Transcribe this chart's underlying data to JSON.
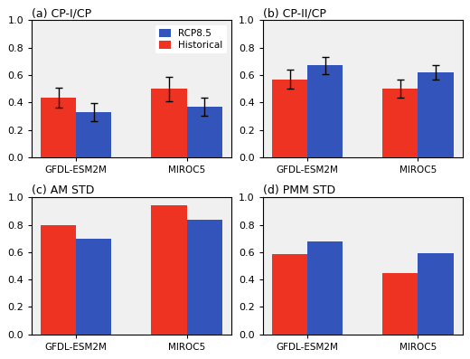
{
  "subplots": [
    {
      "title": "(a) CP-I/CP",
      "groups": [
        "GFDL-ESM2M",
        "MIROC5"
      ],
      "red_values": [
        0.435,
        0.5
      ],
      "blue_values": [
        0.33,
        0.37
      ],
      "red_errors": [
        0.075,
        0.09
      ],
      "blue_errors": [
        0.065,
        0.065
      ],
      "has_legend": true,
      "ylim": [
        0.0,
        1.0
      ],
      "yticks": [
        0.0,
        0.2,
        0.4,
        0.6,
        0.8,
        1.0
      ]
    },
    {
      "title": "(b) CP-II/CP",
      "groups": [
        "GFDL-ESM2M",
        "MIROC5"
      ],
      "red_values": [
        0.57,
        0.5
      ],
      "blue_values": [
        0.67,
        0.62
      ],
      "red_errors": [
        0.07,
        0.065
      ],
      "blue_errors": [
        0.065,
        0.055
      ],
      "has_legend": false,
      "ylim": [
        0.0,
        1.0
      ],
      "yticks": [
        0.0,
        0.2,
        0.4,
        0.6,
        0.8,
        1.0
      ]
    },
    {
      "title": "(c) AM STD",
      "groups": [
        "GFDL-ESM2M",
        "MIROC5"
      ],
      "red_values": [
        0.8,
        0.945
      ],
      "blue_values": [
        0.695,
        0.835
      ],
      "red_errors": [
        0,
        0
      ],
      "blue_errors": [
        0,
        0
      ],
      "has_legend": false,
      "ylim": [
        0.0,
        1.0
      ],
      "yticks": [
        0.0,
        0.2,
        0.4,
        0.6,
        0.8,
        1.0
      ]
    },
    {
      "title": "(d) PMM STD",
      "groups": [
        "GFDL-ESM2M",
        "MIROC5"
      ],
      "red_values": [
        0.585,
        0.45
      ],
      "blue_values": [
        0.675,
        0.59
      ],
      "red_errors": [
        0,
        0
      ],
      "blue_errors": [
        0,
        0
      ],
      "has_legend": false,
      "ylim": [
        0.0,
        1.0
      ],
      "yticks": [
        0.0,
        0.2,
        0.4,
        0.6,
        0.8,
        1.0
      ]
    }
  ],
  "red_color": "#ee3322",
  "blue_color": "#3355bb",
  "legend_labels": [
    "RCP8.5",
    "Historical"
  ],
  "bar_width": 0.32,
  "background_color": "#ffffff",
  "axes_bg": "#f0f0f0"
}
